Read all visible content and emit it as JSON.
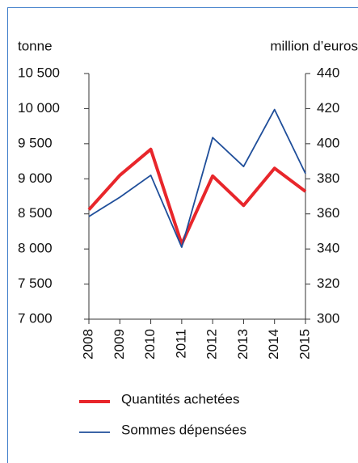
{
  "chart_data": {
    "type": "line",
    "y_label": "tonne",
    "y2_label": "million d’euros",
    "categories": [
      "2008",
      "2009",
      "2010",
      "2011",
      "2012",
      "2013",
      "2014",
      "2015"
    ],
    "series": [
      {
        "name": "Quantités achetées",
        "color": "#e8262b",
        "values": [
          8560,
          9050,
          9420,
          8070,
          9040,
          8620,
          9150,
          8820
        ]
      },
      {
        "name": "Sommes dépensées",
        "color": "#1f4e9a",
        "axis": "y2",
        "values": [
          358.5,
          369.5,
          382,
          341,
          403.5,
          387,
          419.5,
          383
        ]
      }
    ],
    "ylim": [
      7000,
      10500
    ],
    "yticks": [
      {
        "value": 7000,
        "label": "7 000"
      },
      {
        "value": 7500,
        "label": "7 500"
      },
      {
        "value": 8000,
        "label": "8 000"
      },
      {
        "value": 8500,
        "label": "8 500"
      },
      {
        "value": 9000,
        "label": "9 000"
      },
      {
        "value": 9500,
        "label": "9 500"
      },
      {
        "value": 10000,
        "label": "10 000"
      },
      {
        "value": 10500,
        "label": "10 500"
      }
    ],
    "y2lim": [
      300,
      440
    ],
    "y2ticks": [
      300,
      320,
      340,
      360,
      380,
      400,
      420,
      440
    ]
  }
}
